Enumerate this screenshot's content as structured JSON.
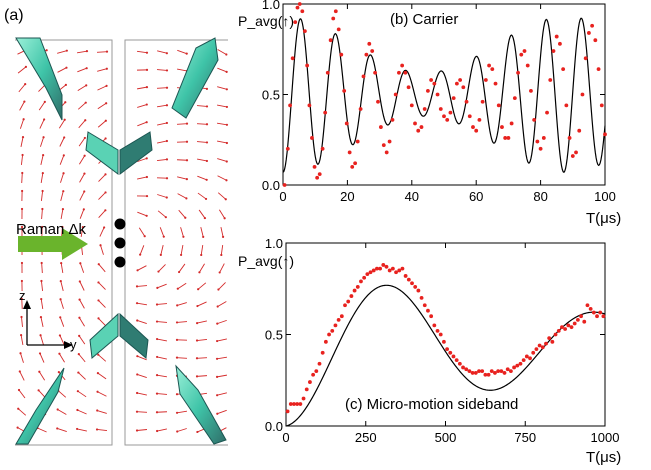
{
  "panel_a": {
    "label": "(a)",
    "beam_label": "Raman Δk",
    "axis_z": "z",
    "axis_y": "y",
    "colors": {
      "field_arrow": "#d42a2a",
      "electrode": "#3fc4a8",
      "beam": "#6ab42c",
      "ion": "#000000"
    }
  },
  "chart_data": [
    {
      "type": "scatter",
      "label": "(b) Carrier",
      "ylabel": "P_avg(↑)",
      "xlabel": "T(μs)",
      "xlim": [
        0,
        100
      ],
      "ylim": [
        0,
        1
      ],
      "xticks": [
        "0",
        "20",
        "40",
        "60",
        "80",
        "100"
      ],
      "yticks": [
        "0.0",
        "0.5",
        "1.0"
      ],
      "fit": {
        "form": "damped-revival oscillation",
        "period_us": 10.9,
        "color": "#000000"
      },
      "points_color": "#e8221f",
      "series": [
        {
          "values": [
            [
              0.5,
              0.0
            ],
            [
              1.5,
              0.2
            ],
            [
              2.2,
              0.44
            ],
            [
              3.0,
              0.7
            ],
            [
              3.8,
              0.9
            ],
            [
              4.5,
              0.98
            ],
            [
              5.2,
              1.0
            ],
            [
              6.0,
              0.96
            ],
            [
              6.8,
              0.85
            ],
            [
              7.5,
              0.66
            ],
            [
              8.2,
              0.44
            ],
            [
              9.0,
              0.26
            ],
            [
              9.8,
              0.1
            ],
            [
              10.6,
              0.04
            ],
            [
              11.4,
              0.06
            ],
            [
              12.3,
              0.2
            ],
            [
              13.1,
              0.4
            ],
            [
              13.9,
              0.62
            ],
            [
              14.8,
              0.8
            ],
            [
              15.6,
              0.92
            ],
            [
              16.4,
              0.96
            ],
            [
              17.3,
              0.86
            ],
            [
              18.1,
              0.72
            ],
            [
              19.0,
              0.52
            ],
            [
              19.8,
              0.34
            ],
            [
              20.7,
              0.18
            ],
            [
              21.5,
              0.1
            ],
            [
              22.4,
              0.12
            ],
            [
              23.2,
              0.24
            ],
            [
              24.1,
              0.42
            ],
            [
              25.0,
              0.6
            ],
            [
              25.9,
              0.72
            ],
            [
              26.8,
              0.78
            ],
            [
              27.7,
              0.74
            ],
            [
              28.6,
              0.62
            ],
            [
              29.5,
              0.46
            ],
            [
              30.4,
              0.32
            ],
            [
              31.3,
              0.22
            ],
            [
              32.2,
              0.18
            ],
            [
              33.1,
              0.24
            ],
            [
              34.0,
              0.36
            ],
            [
              35.0,
              0.5
            ],
            [
              36.0,
              0.62
            ],
            [
              37.0,
              0.66
            ],
            [
              38.0,
              0.62
            ],
            [
              39.0,
              0.54
            ],
            [
              40.0,
              0.44
            ],
            [
              41.0,
              0.34
            ],
            [
              42.0,
              0.3
            ],
            [
              43.0,
              0.32
            ],
            [
              44.0,
              0.42
            ],
            [
              45.0,
              0.52
            ],
            [
              46.0,
              0.58
            ],
            [
              47.0,
              0.56
            ],
            [
              48.0,
              0.5
            ],
            [
              49.0,
              0.42
            ],
            [
              50.0,
              0.38
            ],
            [
              51.0,
              0.36
            ],
            [
              52.0,
              0.4
            ],
            [
              53.0,
              0.48
            ],
            [
              54.0,
              0.56
            ],
            [
              55.0,
              0.58
            ],
            [
              56.0,
              0.54
            ],
            [
              57.0,
              0.46
            ],
            [
              58.0,
              0.38
            ],
            [
              59.0,
              0.32
            ],
            [
              60.0,
              0.3
            ],
            [
              61.0,
              0.36
            ],
            [
              62.0,
              0.46
            ],
            [
              63.0,
              0.58
            ],
            [
              64.0,
              0.66
            ],
            [
              65.0,
              0.64
            ],
            [
              66.0,
              0.56
            ],
            [
              67.0,
              0.44
            ],
            [
              68.0,
              0.32
            ],
            [
              69.0,
              0.26
            ],
            [
              70.0,
              0.26
            ],
            [
              71.0,
              0.34
            ],
            [
              72.0,
              0.48
            ],
            [
              73.0,
              0.62
            ],
            [
              74.0,
              0.72
            ],
            [
              75.0,
              0.74
            ],
            [
              76.0,
              0.66
            ],
            [
              77.0,
              0.52
            ],
            [
              78.0,
              0.36
            ],
            [
              79.0,
              0.24
            ],
            [
              80.0,
              0.2
            ],
            [
              81.0,
              0.26
            ],
            [
              82.0,
              0.4
            ],
            [
              83.0,
              0.58
            ],
            [
              84.0,
              0.74
            ],
            [
              85.0,
              0.82
            ],
            [
              86.0,
              0.78
            ],
            [
              87.0,
              0.64
            ],
            [
              88.0,
              0.44
            ],
            [
              89.0,
              0.26
            ],
            [
              90.0,
              0.16
            ],
            [
              91.0,
              0.18
            ],
            [
              92.0,
              0.3
            ],
            [
              93.0,
              0.5
            ],
            [
              94.0,
              0.7
            ],
            [
              95.0,
              0.84
            ],
            [
              96.0,
              0.88
            ],
            [
              97.0,
              0.8
            ],
            [
              98.0,
              0.64
            ],
            [
              99.0,
              0.44
            ],
            [
              100.0,
              0.28
            ]
          ]
        }
      ]
    },
    {
      "type": "scatter",
      "label": "(c) Micro-motion sideband",
      "ylabel": "P_avg(↑)",
      "xlabel": "T(μs)",
      "xlim": [
        0,
        1000
      ],
      "ylim": [
        0,
        1
      ],
      "xticks": [
        "0",
        "250",
        "500",
        "750",
        "1000"
      ],
      "yticks": [
        "0.0",
        "0.5",
        "1.0"
      ],
      "fit": {
        "form": "damped oscillation",
        "period_us": 650,
        "color": "#000000"
      },
      "points_color": "#e8221f",
      "series": [
        {
          "values": [
            [
              5,
              0.08
            ],
            [
              15,
              0.12
            ],
            [
              25,
              0.12
            ],
            [
              35,
              0.12
            ],
            [
              45,
              0.12
            ],
            [
              55,
              0.15
            ],
            [
              65,
              0.2
            ],
            [
              75,
              0.24
            ],
            [
              85,
              0.28
            ],
            [
              95,
              0.3
            ],
            [
              105,
              0.34
            ],
            [
              115,
              0.4
            ],
            [
              125,
              0.46
            ],
            [
              135,
              0.5
            ],
            [
              145,
              0.52
            ],
            [
              155,
              0.55
            ],
            [
              165,
              0.58
            ],
            [
              175,
              0.6
            ],
            [
              185,
              0.66
            ],
            [
              195,
              0.68
            ],
            [
              205,
              0.71
            ],
            [
              215,
              0.74
            ],
            [
              225,
              0.76
            ],
            [
              235,
              0.79
            ],
            [
              245,
              0.81
            ],
            [
              255,
              0.83
            ],
            [
              265,
              0.84
            ],
            [
              275,
              0.85
            ],
            [
              285,
              0.86
            ],
            [
              295,
              0.86
            ],
            [
              305,
              0.88
            ],
            [
              315,
              0.87
            ],
            [
              325,
              0.85
            ],
            [
              335,
              0.86
            ],
            [
              345,
              0.84
            ],
            [
              355,
              0.85
            ],
            [
              365,
              0.86
            ],
            [
              375,
              0.82
            ],
            [
              385,
              0.8
            ],
            [
              395,
              0.78
            ],
            [
              405,
              0.76
            ],
            [
              415,
              0.74
            ],
            [
              425,
              0.7
            ],
            [
              435,
              0.66
            ],
            [
              445,
              0.63
            ],
            [
              455,
              0.6
            ],
            [
              465,
              0.55
            ],
            [
              475,
              0.52
            ],
            [
              485,
              0.5
            ],
            [
              495,
              0.46
            ],
            [
              505,
              0.42
            ],
            [
              515,
              0.4
            ],
            [
              525,
              0.38
            ],
            [
              535,
              0.36
            ],
            [
              545,
              0.34
            ],
            [
              555,
              0.32
            ],
            [
              565,
              0.31
            ],
            [
              575,
              0.3
            ],
            [
              585,
              0.29
            ],
            [
              595,
              0.29
            ],
            [
              605,
              0.3
            ],
            [
              615,
              0.3
            ],
            [
              625,
              0.28
            ],
            [
              635,
              0.28
            ],
            [
              645,
              0.3
            ],
            [
              655,
              0.29
            ],
            [
              665,
              0.3
            ],
            [
              675,
              0.3
            ],
            [
              685,
              0.29
            ],
            [
              695,
              0.31
            ],
            [
              705,
              0.3
            ],
            [
              715,
              0.32
            ],
            [
              725,
              0.33
            ],
            [
              735,
              0.34
            ],
            [
              745,
              0.36
            ],
            [
              755,
              0.38
            ],
            [
              765,
              0.37
            ],
            [
              775,
              0.4
            ],
            [
              785,
              0.42
            ],
            [
              795,
              0.44
            ],
            [
              805,
              0.43
            ],
            [
              815,
              0.45
            ],
            [
              825,
              0.48
            ],
            [
              835,
              0.46
            ],
            [
              845,
              0.5
            ],
            [
              855,
              0.52
            ],
            [
              865,
              0.54
            ],
            [
              875,
              0.53
            ],
            [
              885,
              0.55
            ],
            [
              895,
              0.54
            ],
            [
              905,
              0.56
            ],
            [
              915,
              0.58
            ],
            [
              925,
              0.6
            ],
            [
              935,
              0.57
            ],
            [
              945,
              0.66
            ],
            [
              955,
              0.64
            ],
            [
              965,
              0.62
            ],
            [
              975,
              0.6
            ],
            [
              985,
              0.62
            ],
            [
              995,
              0.6
            ]
          ]
        }
      ]
    }
  ]
}
